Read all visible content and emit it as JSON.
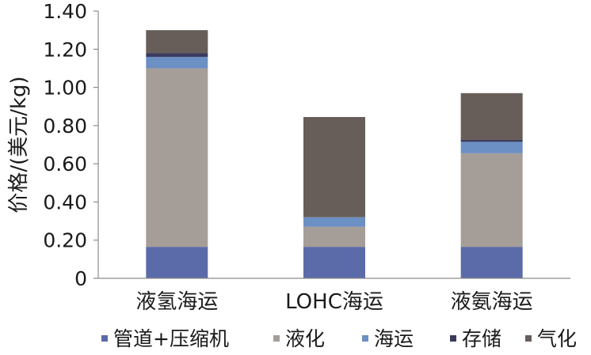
{
  "chart_data": {
    "type": "bar",
    "stacked": true,
    "title": "",
    "xlabel": "",
    "ylabel": "价格/(美元/kg)",
    "ylim": [
      0,
      1.4
    ],
    "yticks": [
      "0",
      "0.20",
      "0.40",
      "0.60",
      "0.80",
      "1.00",
      "1.20",
      "1.40"
    ],
    "ytick_values": [
      0,
      0.2,
      0.4,
      0.6,
      0.8,
      1.0,
      1.2,
      1.4
    ],
    "categories": [
      "液氢海运",
      "LOHC海运",
      "液氨海运"
    ],
    "series": [
      {
        "name": "管道+压缩机",
        "color": "#5b6aa8",
        "values": [
          0.165,
          0.165,
          0.165
        ]
      },
      {
        "name": "液化",
        "color": "#a59d97",
        "values": [
          0.935,
          0.105,
          0.49
        ]
      },
      {
        "name": "海运",
        "color": "#6c8fc4",
        "values": [
          0.06,
          0.05,
          0.06
        ]
      },
      {
        "name": "存储",
        "color": "#3a3a5e",
        "values": [
          0.02,
          0.0,
          0.01
        ]
      },
      {
        "name": "气化",
        "color": "#675d59",
        "values": [
          0.12,
          0.525,
          0.245
        ]
      }
    ],
    "grid": false,
    "legend_position": "bottom"
  }
}
